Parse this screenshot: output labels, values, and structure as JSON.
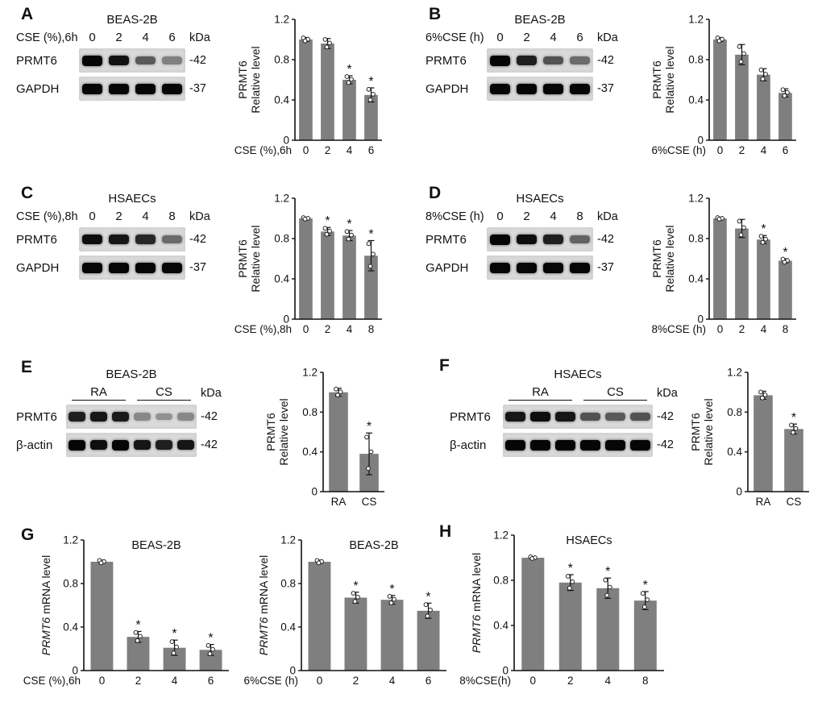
{
  "panel_labels": {
    "A": "A",
    "B": "B",
    "C": "C",
    "D": "D",
    "E": "E",
    "F": "F",
    "G": "G",
    "H": "H"
  },
  "accent_colors": {
    "bar_fill": "#7f7f7f",
    "axis": "#111111",
    "band": "#060606",
    "strip_bg": "#dadada"
  },
  "blots": {
    "A": {
      "cell_line": "BEAS-2B",
      "condition": "CSE (%),6h",
      "lanes": [
        "0",
        "2",
        "4",
        "6"
      ],
      "kda_unit": "kDa",
      "rows": [
        {
          "protein": "PRMT6",
          "kda": "-42",
          "bands": [
            1,
            0.92,
            0.5,
            0.28
          ]
        },
        {
          "protein": "GAPDH",
          "kda": "-37",
          "bands": [
            1,
            1,
            1,
            1
          ]
        }
      ]
    },
    "B": {
      "cell_line": "BEAS-2B",
      "condition": "6%CSE (h)",
      "lanes": [
        "0",
        "2",
        "4",
        "6"
      ],
      "kda_unit": "kDa",
      "rows": [
        {
          "protein": "PRMT6",
          "kda": "-42",
          "bands": [
            1,
            0.85,
            0.55,
            0.4
          ]
        },
        {
          "protein": "GAPDH",
          "kda": "-37",
          "bands": [
            1,
            1,
            1,
            1
          ]
        }
      ]
    },
    "C": {
      "cell_line": "HSAECs",
      "condition": "CSE (%),8h",
      "lanes": [
        "0",
        "2",
        "4",
        "8"
      ],
      "kda_unit": "kDa",
      "rows": [
        {
          "protein": "PRMT6",
          "kda": "-42",
          "bands": [
            0.95,
            0.9,
            0.8,
            0.4
          ]
        },
        {
          "protein": "GAPDH",
          "kda": "-37",
          "bands": [
            1,
            1,
            1,
            1
          ]
        }
      ]
    },
    "D": {
      "cell_line": "HSAECs",
      "condition": "8%CSE (h)",
      "lanes": [
        "0",
        "2",
        "4",
        "8"
      ],
      "kda_unit": "kDa",
      "rows": [
        {
          "protein": "PRMT6",
          "kda": "-42",
          "bands": [
            1,
            0.95,
            0.85,
            0.45
          ]
        },
        {
          "protein": "GAPDH",
          "kda": "-37",
          "bands": [
            1,
            1,
            1,
            1
          ]
        }
      ]
    },
    "E": {
      "cell_line": "BEAS-2B",
      "groups": [
        {
          "label": "RA",
          "n": 3
        },
        {
          "label": "CS",
          "n": 3
        }
      ],
      "kda_unit": "kDa",
      "rows": [
        {
          "protein": "PRMT6",
          "kda": "-42",
          "bands": [
            0.85,
            0.9,
            0.88,
            0.22,
            0.18,
            0.22
          ]
        },
        {
          "protein": "β-actin",
          "kda": "-42",
          "bands": [
            1,
            0.95,
            1,
            0.9,
            0.85,
            0.9
          ]
        }
      ]
    },
    "F": {
      "cell_line": "HSAECs",
      "groups": [
        {
          "label": "RA",
          "n": 3
        },
        {
          "label": "CS",
          "n": 3
        }
      ],
      "kda_unit": "kDa",
      "rows": [
        {
          "protein": "PRMT6",
          "kda": "-42",
          "bands": [
            0.9,
            0.95,
            0.9,
            0.55,
            0.5,
            0.55
          ]
        },
        {
          "protein": "β-actin",
          "kda": "-42",
          "bands": [
            1,
            1,
            1,
            1,
            1,
            1
          ]
        }
      ]
    }
  },
  "chart_data": [
    {
      "panel": "A",
      "type": "bar",
      "title": "",
      "ylabel_lines": [
        "PRMT6",
        "Relative level"
      ],
      "ylabel_italic_word": "",
      "xlabel": "CSE (%),6h",
      "categories": [
        "0",
        "2",
        "4",
        "6"
      ],
      "values": [
        1.0,
        0.96,
        0.6,
        0.45
      ],
      "errors": [
        0.02,
        0.05,
        0.04,
        0.07
      ],
      "sig": [
        "",
        "",
        "*",
        "*"
      ],
      "ylim": [
        0,
        1.2
      ],
      "yticks": [
        0,
        0.4,
        0.8,
        1.2
      ]
    },
    {
      "panel": "B",
      "type": "bar",
      "title": "",
      "ylabel_lines": [
        "PRMT6",
        "Relative level"
      ],
      "ylabel_italic_word": "",
      "xlabel": "6%CSE (h)",
      "categories": [
        "0",
        "2",
        "4",
        "6"
      ],
      "values": [
        1.0,
        0.85,
        0.65,
        0.47
      ],
      "errors": [
        0.02,
        0.1,
        0.06,
        0.04
      ],
      "sig": [
        "",
        "",
        "",
        ""
      ],
      "ylim": [
        0,
        1.2
      ],
      "yticks": [
        0,
        0.4,
        0.8,
        1.2
      ]
    },
    {
      "panel": "C",
      "type": "bar",
      "title": "",
      "ylabel_lines": [
        "PRMT6",
        "Relative level"
      ],
      "ylabel_italic_word": "",
      "xlabel": "CSE (%),8h",
      "categories": [
        "0",
        "2",
        "4",
        "8"
      ],
      "values": [
        1.0,
        0.87,
        0.83,
        0.63
      ],
      "errors": [
        0.01,
        0.04,
        0.05,
        0.15
      ],
      "sig": [
        "",
        "*",
        "*",
        "*"
      ],
      "ylim": [
        0,
        1.2
      ],
      "yticks": [
        0,
        0.4,
        0.8,
        1.2
      ]
    },
    {
      "panel": "D",
      "type": "bar",
      "title": "",
      "ylabel_lines": [
        "PRMT6",
        "Relative level"
      ],
      "ylabel_italic_word": "",
      "xlabel": "8%CSE (h)",
      "categories": [
        "0",
        "2",
        "4",
        "8"
      ],
      "values": [
        1.0,
        0.9,
        0.79,
        0.58
      ],
      "errors": [
        0.01,
        0.09,
        0.04,
        0.02
      ],
      "sig": [
        "",
        "",
        "*",
        "*"
      ],
      "ylim": [
        0,
        1.2
      ],
      "yticks": [
        0,
        0.4,
        0.8,
        1.2
      ]
    },
    {
      "panel": "E",
      "type": "bar",
      "title": "",
      "ylabel_lines": [
        "PRMT6",
        "Relative level"
      ],
      "ylabel_italic_word": "",
      "xlabel": "",
      "categories": [
        "RA",
        "CS"
      ],
      "values": [
        1.0,
        0.38
      ],
      "errors": [
        0.04,
        0.21
      ],
      "sig": [
        "",
        "*"
      ],
      "ylim": [
        0,
        1.2
      ],
      "yticks": [
        0,
        0.4,
        0.8,
        1.2
      ]
    },
    {
      "panel": "F",
      "type": "bar",
      "title": "",
      "ylabel_lines": [
        "PRMT6",
        "Relative level"
      ],
      "ylabel_italic_word": "",
      "xlabel": "",
      "categories": [
        "RA",
        "CS"
      ],
      "values": [
        0.97,
        0.63
      ],
      "errors": [
        0.04,
        0.05
      ],
      "sig": [
        "",
        "*"
      ],
      "ylim": [
        0,
        1.2
      ],
      "yticks": [
        0,
        0.4,
        0.8,
        1.2
      ]
    },
    {
      "panel": "G-left",
      "type": "bar",
      "title": "BEAS-2B",
      "ylabel_lines": [
        "PRMT6 mRNA level"
      ],
      "ylabel_italic_word": "PRMT6",
      "xlabel": "CSE (%),6h",
      "categories": [
        "0",
        "2",
        "4",
        "6"
      ],
      "values": [
        1.0,
        0.31,
        0.21,
        0.19
      ],
      "errors": [
        0.015,
        0.05,
        0.07,
        0.05
      ],
      "sig": [
        "",
        "*",
        "*",
        "*"
      ],
      "ylim": [
        0,
        1.2
      ],
      "yticks": [
        0,
        0.4,
        0.8,
        1.2
      ]
    },
    {
      "panel": "G-right",
      "type": "bar",
      "title": "BEAS-2B",
      "ylabel_lines": [
        "PRMT6 mRNA level"
      ],
      "ylabel_italic_word": "PRMT6",
      "xlabel": "6%CSE (h)",
      "categories": [
        "0",
        "2",
        "4",
        "6"
      ],
      "values": [
        1.0,
        0.67,
        0.65,
        0.55
      ],
      "errors": [
        0.015,
        0.05,
        0.04,
        0.07
      ],
      "sig": [
        "",
        "*",
        "*",
        "*"
      ],
      "ylim": [
        0,
        1.2
      ],
      "yticks": [
        0,
        0.4,
        0.8,
        1.2
      ]
    },
    {
      "panel": "H",
      "type": "bar",
      "title": "HSAECs",
      "ylabel_lines": [
        "PRMT6 mRNA level"
      ],
      "ylabel_italic_word": "PRMT6",
      "xlabel": "8%CSE(h)",
      "categories": [
        "0",
        "2",
        "4",
        "8"
      ],
      "values": [
        1.0,
        0.78,
        0.73,
        0.62
      ],
      "errors": [
        0.01,
        0.07,
        0.09,
        0.08
      ],
      "sig": [
        "",
        "*",
        "*",
        "*"
      ],
      "ylim": [
        0,
        1.2
      ],
      "yticks": [
        0,
        0.4,
        0.8,
        1.2
      ]
    }
  ]
}
